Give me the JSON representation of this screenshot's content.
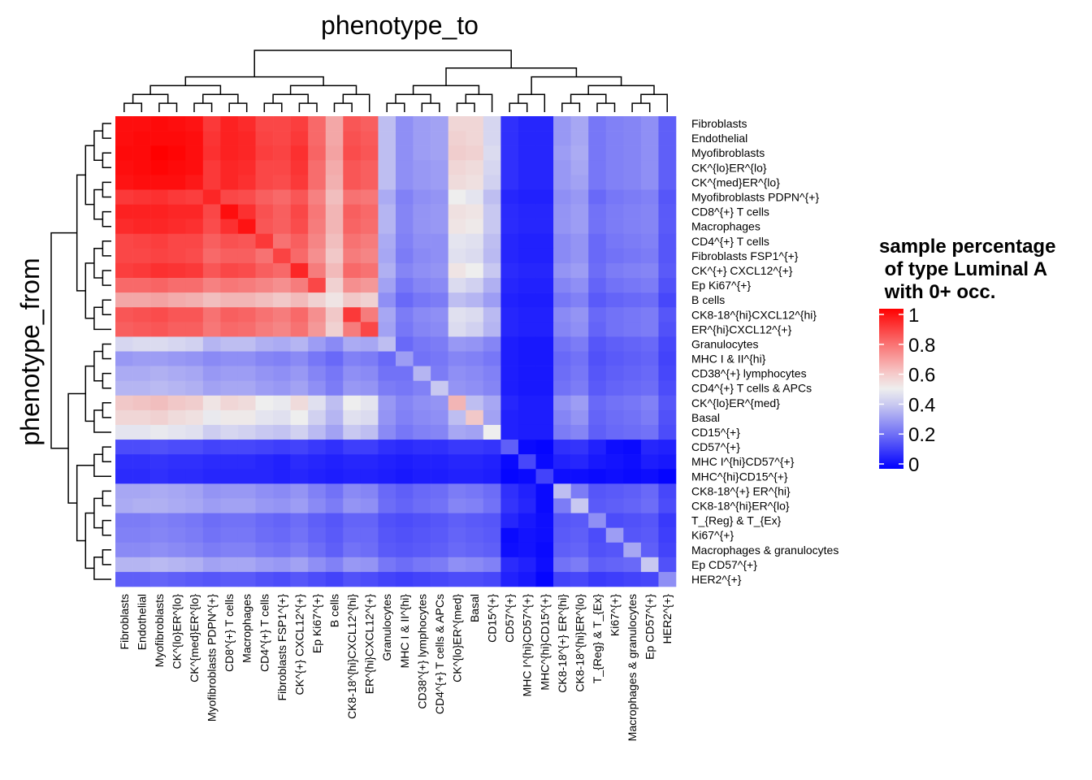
{
  "chart_data": {
    "type": "heatmap",
    "title": "",
    "xlabel": "phenotype_to",
    "ylabel": "phenotype_from",
    "colorscale": {
      "low": "#0000ff",
      "mid": "#eeeeee",
      "high": "#ff0000",
      "range": [
        0,
        1
      ]
    },
    "legend": {
      "title_lines": [
        "sample percentage",
        " of type Luminal A",
        " with 0+ occ."
      ],
      "ticks": [
        1,
        0.8,
        0.6,
        0.4,
        0.2,
        0
      ],
      "tick_labels": [
        "1",
        "0.8",
        "0.6",
        "0.4",
        "0.2",
        "0"
      ],
      "placement": "right"
    },
    "rows": [
      "Fibroblasts",
      "Endothelial",
      "Myofibroblasts",
      "CK^{lo}ER^{lo}",
      "CK^{med}ER^{lo}",
      "Myofibroblasts PDPN^{+}",
      "CD8^{+} T cells",
      "Macrophages",
      "CD4^{+} T cells",
      "Fibroblasts FSP1^{+}",
      "CK^{+} CXCL12^{+}",
      "Ep Ki67^{+}",
      "B cells",
      "CK8-18^{hi}CXCL12^{hi}",
      "ER^{hi}CXCL12^{+}",
      "Granulocytes",
      "MHC I & II^{hi}",
      "CD38^{+} lymphocytes",
      "CD4^{+} T cells & APCs",
      "CK^{lo}ER^{med}",
      "Basal",
      "CD15^{+}",
      "CD57^{+}",
      "MHC I^{hi}CD57^{+}",
      "MHC^{hi}CD15^{+}",
      "CK8-18^{+} ER^{hi}",
      "CK8-18^{hi}ER^{lo}",
      "T_{Reg} & T_{Ex}",
      "Ki67^{+}",
      "Macrophages & granulocytes",
      "Ep CD57^{+}",
      "HER2^{+}"
    ],
    "columns": [
      "Fibroblasts",
      "Endothelial",
      "Myofibroblasts",
      "CK^{lo}ER^{lo}",
      "CK^{med}ER^{lo}",
      "Myofibroblasts PDPN^{+}",
      "CD8^{+} T cells",
      "Macrophages",
      "CD4^{+} T cells",
      "Fibroblasts FSP1^{+}",
      "CK^{+} CXCL12^{+}",
      "Ep Ki67^{+}",
      "B cells",
      "CK8-18^{hi}CXCL12^{hi}",
      "ER^{hi}CXCL12^{+}",
      "Granulocytes",
      "MHC I & II^{hi}",
      "CD38^{+} lymphocytes",
      "CD4^{+} T cells & APCs",
      "CK^{lo}ER^{med}",
      "Basal",
      "CD15^{+}",
      "CD57^{+}",
      "MHC I^{hi}CD57^{+}",
      "MHC^{hi}CD15^{+}",
      "CK8-18^{+} ER^{hi}",
      "CK8-18^{hi}ER^{lo}",
      "T_{Reg} & T_{Ex}",
      "Ki67^{+}",
      "Macrophages & granulocytes",
      "Ep CD57^{+}",
      "HER2^{+}"
    ],
    "values": [
      [
        0.97,
        0.97,
        0.98,
        0.97,
        0.96,
        0.88,
        0.93,
        0.91,
        0.85,
        0.85,
        0.87,
        0.78,
        0.65,
        0.82,
        0.8,
        0.4,
        0.3,
        0.33,
        0.34,
        0.55,
        0.55,
        0.45,
        0.1,
        0.08,
        0.08,
        0.32,
        0.35,
        0.25,
        0.27,
        0.28,
        0.3,
        0.2
      ],
      [
        0.97,
        0.98,
        0.98,
        0.98,
        0.97,
        0.89,
        0.93,
        0.92,
        0.86,
        0.85,
        0.88,
        0.78,
        0.65,
        0.83,
        0.81,
        0.4,
        0.3,
        0.33,
        0.34,
        0.56,
        0.55,
        0.45,
        0.1,
        0.08,
        0.08,
        0.32,
        0.35,
        0.25,
        0.27,
        0.28,
        0.3,
        0.2
      ],
      [
        0.98,
        0.98,
        1.0,
        0.99,
        0.97,
        0.9,
        0.93,
        0.92,
        0.87,
        0.86,
        0.9,
        0.79,
        0.66,
        0.84,
        0.82,
        0.4,
        0.3,
        0.33,
        0.34,
        0.57,
        0.56,
        0.46,
        0.1,
        0.08,
        0.08,
        0.33,
        0.36,
        0.25,
        0.27,
        0.28,
        0.3,
        0.2
      ],
      [
        0.97,
        0.98,
        0.99,
        0.98,
        0.97,
        0.88,
        0.92,
        0.91,
        0.85,
        0.85,
        0.89,
        0.77,
        0.64,
        0.82,
        0.8,
        0.4,
        0.3,
        0.32,
        0.33,
        0.55,
        0.54,
        0.45,
        0.1,
        0.08,
        0.08,
        0.32,
        0.35,
        0.25,
        0.27,
        0.28,
        0.3,
        0.2
      ],
      [
        0.96,
        0.97,
        0.97,
        0.97,
        0.95,
        0.88,
        0.92,
        0.9,
        0.85,
        0.84,
        0.88,
        0.77,
        0.63,
        0.82,
        0.8,
        0.4,
        0.3,
        0.32,
        0.33,
        0.54,
        0.53,
        0.44,
        0.1,
        0.08,
        0.08,
        0.32,
        0.34,
        0.25,
        0.27,
        0.28,
        0.3,
        0.2
      ],
      [
        0.88,
        0.89,
        0.9,
        0.88,
        0.87,
        0.92,
        0.85,
        0.84,
        0.8,
        0.78,
        0.82,
        0.73,
        0.6,
        0.76,
        0.75,
        0.36,
        0.27,
        0.3,
        0.31,
        0.5,
        0.48,
        0.4,
        0.08,
        0.07,
        0.07,
        0.3,
        0.32,
        0.22,
        0.25,
        0.26,
        0.27,
        0.18
      ],
      [
        0.93,
        0.93,
        0.93,
        0.92,
        0.92,
        0.85,
        0.97,
        0.9,
        0.83,
        0.8,
        0.85,
        0.75,
        0.62,
        0.8,
        0.78,
        0.38,
        0.28,
        0.31,
        0.32,
        0.53,
        0.52,
        0.42,
        0.09,
        0.08,
        0.08,
        0.31,
        0.33,
        0.24,
        0.26,
        0.27,
        0.28,
        0.19
      ],
      [
        0.91,
        0.92,
        0.92,
        0.91,
        0.9,
        0.84,
        0.9,
        0.96,
        0.82,
        0.8,
        0.84,
        0.74,
        0.62,
        0.79,
        0.77,
        0.38,
        0.28,
        0.31,
        0.32,
        0.52,
        0.51,
        0.42,
        0.09,
        0.08,
        0.08,
        0.31,
        0.33,
        0.24,
        0.26,
        0.27,
        0.28,
        0.19
      ],
      [
        0.85,
        0.86,
        0.87,
        0.85,
        0.85,
        0.8,
        0.83,
        0.82,
        0.88,
        0.76,
        0.8,
        0.72,
        0.6,
        0.76,
        0.74,
        0.36,
        0.27,
        0.3,
        0.3,
        0.48,
        0.47,
        0.4,
        0.08,
        0.07,
        0.07,
        0.29,
        0.31,
        0.22,
        0.25,
        0.26,
        0.27,
        0.18
      ],
      [
        0.85,
        0.85,
        0.86,
        0.85,
        0.84,
        0.78,
        0.8,
        0.8,
        0.76,
        0.86,
        0.78,
        0.7,
        0.58,
        0.74,
        0.72,
        0.35,
        0.26,
        0.29,
        0.3,
        0.47,
        0.46,
        0.39,
        0.08,
        0.07,
        0.07,
        0.29,
        0.31,
        0.22,
        0.24,
        0.25,
        0.26,
        0.18
      ],
      [
        0.87,
        0.88,
        0.9,
        0.89,
        0.88,
        0.82,
        0.85,
        0.84,
        0.8,
        0.78,
        0.92,
        0.74,
        0.61,
        0.78,
        0.76,
        0.37,
        0.28,
        0.3,
        0.31,
        0.52,
        0.5,
        0.42,
        0.09,
        0.08,
        0.08,
        0.31,
        0.33,
        0.23,
        0.26,
        0.27,
        0.28,
        0.19
      ],
      [
        0.78,
        0.78,
        0.79,
        0.77,
        0.77,
        0.73,
        0.75,
        0.74,
        0.72,
        0.7,
        0.74,
        0.85,
        0.56,
        0.7,
        0.68,
        0.34,
        0.25,
        0.28,
        0.29,
        0.46,
        0.44,
        0.37,
        0.08,
        0.07,
        0.07,
        0.28,
        0.3,
        0.21,
        0.24,
        0.25,
        0.26,
        0.17
      ],
      [
        0.65,
        0.65,
        0.66,
        0.64,
        0.63,
        0.6,
        0.62,
        0.62,
        0.6,
        0.58,
        0.61,
        0.56,
        0.52,
        0.58,
        0.56,
        0.3,
        0.22,
        0.25,
        0.26,
        0.4,
        0.38,
        0.33,
        0.07,
        0.06,
        0.06,
        0.25,
        0.27,
        0.19,
        0.21,
        0.22,
        0.23,
        0.15
      ],
      [
        0.82,
        0.83,
        0.84,
        0.82,
        0.82,
        0.76,
        0.8,
        0.79,
        0.76,
        0.74,
        0.78,
        0.7,
        0.58,
        0.88,
        0.74,
        0.35,
        0.26,
        0.29,
        0.3,
        0.47,
        0.46,
        0.39,
        0.08,
        0.07,
        0.07,
        0.29,
        0.31,
        0.22,
        0.24,
        0.25,
        0.26,
        0.18
      ],
      [
        0.8,
        0.81,
        0.82,
        0.8,
        0.8,
        0.75,
        0.78,
        0.77,
        0.74,
        0.72,
        0.76,
        0.68,
        0.56,
        0.74,
        0.85,
        0.34,
        0.25,
        0.28,
        0.29,
        0.46,
        0.44,
        0.38,
        0.08,
        0.07,
        0.07,
        0.28,
        0.3,
        0.21,
        0.24,
        0.25,
        0.26,
        0.17
      ],
      [
        0.45,
        0.46,
        0.46,
        0.45,
        0.44,
        0.38,
        0.4,
        0.4,
        0.37,
        0.36,
        0.38,
        0.33,
        0.29,
        0.36,
        0.35,
        0.4,
        0.22,
        0.25,
        0.26,
        0.32,
        0.31,
        0.28,
        0.06,
        0.05,
        0.05,
        0.24,
        0.26,
        0.18,
        0.2,
        0.21,
        0.22,
        0.15
      ],
      [
        0.32,
        0.33,
        0.33,
        0.32,
        0.31,
        0.29,
        0.3,
        0.3,
        0.28,
        0.27,
        0.29,
        0.25,
        0.22,
        0.27,
        0.26,
        0.22,
        0.33,
        0.24,
        0.25,
        0.28,
        0.27,
        0.25,
        0.06,
        0.05,
        0.05,
        0.22,
        0.24,
        0.17,
        0.19,
        0.2,
        0.21,
        0.14
      ],
      [
        0.36,
        0.36,
        0.37,
        0.36,
        0.35,
        0.32,
        0.33,
        0.33,
        0.31,
        0.3,
        0.32,
        0.28,
        0.25,
        0.3,
        0.29,
        0.24,
        0.24,
        0.38,
        0.26,
        0.3,
        0.29,
        0.27,
        0.06,
        0.05,
        0.05,
        0.23,
        0.25,
        0.18,
        0.2,
        0.21,
        0.22,
        0.15
      ],
      [
        0.38,
        0.38,
        0.39,
        0.38,
        0.37,
        0.34,
        0.35,
        0.35,
        0.33,
        0.32,
        0.34,
        0.3,
        0.26,
        0.32,
        0.31,
        0.26,
        0.25,
        0.27,
        0.42,
        0.31,
        0.3,
        0.28,
        0.06,
        0.05,
        0.05,
        0.24,
        0.26,
        0.19,
        0.21,
        0.22,
        0.23,
        0.16
      ],
      [
        0.58,
        0.59,
        0.6,
        0.58,
        0.57,
        0.52,
        0.55,
        0.54,
        0.5,
        0.49,
        0.54,
        0.47,
        0.4,
        0.5,
        0.48,
        0.32,
        0.28,
        0.3,
        0.31,
        0.62,
        0.4,
        0.35,
        0.08,
        0.06,
        0.06,
        0.3,
        0.33,
        0.22,
        0.24,
        0.25,
        0.27,
        0.18
      ],
      [
        0.55,
        0.55,
        0.56,
        0.54,
        0.53,
        0.49,
        0.51,
        0.51,
        0.48,
        0.47,
        0.5,
        0.44,
        0.38,
        0.47,
        0.46,
        0.31,
        0.27,
        0.29,
        0.3,
        0.4,
        0.58,
        0.34,
        0.07,
        0.06,
        0.06,
        0.28,
        0.31,
        0.21,
        0.23,
        0.24,
        0.26,
        0.17
      ],
      [
        0.48,
        0.48,
        0.49,
        0.48,
        0.47,
        0.43,
        0.45,
        0.44,
        0.42,
        0.41,
        0.44,
        0.39,
        0.34,
        0.42,
        0.4,
        0.29,
        0.25,
        0.27,
        0.28,
        0.35,
        0.34,
        0.5,
        0.07,
        0.06,
        0.06,
        0.26,
        0.28,
        0.2,
        0.22,
        0.23,
        0.24,
        0.16
      ],
      [
        0.16,
        0.16,
        0.17,
        0.16,
        0.16,
        0.14,
        0.15,
        0.15,
        0.14,
        0.13,
        0.14,
        0.12,
        0.1,
        0.13,
        0.13,
        0.1,
        0.09,
        0.1,
        0.1,
        0.12,
        0.12,
        0.11,
        0.2,
        0.02,
        0.01,
        0.1,
        0.11,
        0.07,
        0.03,
        0.02,
        0.08,
        0.07
      ],
      [
        0.1,
        0.1,
        0.11,
        0.1,
        0.1,
        0.09,
        0.09,
        0.09,
        0.08,
        0.07,
        0.09,
        0.08,
        0.07,
        0.08,
        0.08,
        0.07,
        0.06,
        0.07,
        0.07,
        0.08,
        0.08,
        0.07,
        0.02,
        0.15,
        0.02,
        0.07,
        0.08,
        0.05,
        0.04,
        0.03,
        0.06,
        0.05
      ],
      [
        0.09,
        0.09,
        0.1,
        0.09,
        0.09,
        0.08,
        0.08,
        0.08,
        0.08,
        0.07,
        0.08,
        0.07,
        0.06,
        0.07,
        0.07,
        0.06,
        0.05,
        0.06,
        0.06,
        0.07,
        0.07,
        0.06,
        0.01,
        0.02,
        0.14,
        0.03,
        0.03,
        0.02,
        0.03,
        0.02,
        0.03,
        0.01
      ],
      [
        0.35,
        0.35,
        0.36,
        0.35,
        0.34,
        0.31,
        0.32,
        0.32,
        0.3,
        0.29,
        0.31,
        0.27,
        0.24,
        0.29,
        0.28,
        0.22,
        0.2,
        0.22,
        0.23,
        0.26,
        0.25,
        0.23,
        0.1,
        0.07,
        0.02,
        0.4,
        0.26,
        0.18,
        0.19,
        0.2,
        0.22,
        0.15
      ],
      [
        0.36,
        0.37,
        0.37,
        0.36,
        0.35,
        0.33,
        0.34,
        0.34,
        0.32,
        0.31,
        0.33,
        0.29,
        0.26,
        0.31,
        0.3,
        0.23,
        0.21,
        0.23,
        0.24,
        0.28,
        0.27,
        0.24,
        0.11,
        0.08,
        0.02,
        0.26,
        0.42,
        0.19,
        0.2,
        0.21,
        0.23,
        0.16
      ],
      [
        0.26,
        0.26,
        0.27,
        0.26,
        0.25,
        0.23,
        0.24,
        0.24,
        0.22,
        0.21,
        0.23,
        0.2,
        0.18,
        0.21,
        0.21,
        0.17,
        0.16,
        0.17,
        0.18,
        0.2,
        0.19,
        0.18,
        0.08,
        0.05,
        0.03,
        0.18,
        0.19,
        0.3,
        0.16,
        0.17,
        0.18,
        0.12
      ],
      [
        0.27,
        0.27,
        0.28,
        0.27,
        0.26,
        0.24,
        0.25,
        0.25,
        0.23,
        0.22,
        0.24,
        0.21,
        0.19,
        0.22,
        0.22,
        0.18,
        0.17,
        0.18,
        0.19,
        0.21,
        0.2,
        0.19,
        0.02,
        0.04,
        0.03,
        0.19,
        0.2,
        0.16,
        0.33,
        0.18,
        0.19,
        0.13
      ],
      [
        0.29,
        0.29,
        0.3,
        0.29,
        0.28,
        0.26,
        0.27,
        0.27,
        0.25,
        0.24,
        0.26,
        0.23,
        0.2,
        0.24,
        0.23,
        0.19,
        0.18,
        0.19,
        0.2,
        0.22,
        0.21,
        0.2,
        0.03,
        0.04,
        0.02,
        0.2,
        0.21,
        0.17,
        0.18,
        0.35,
        0.2,
        0.14
      ],
      [
        0.38,
        0.38,
        0.39,
        0.38,
        0.37,
        0.34,
        0.35,
        0.35,
        0.33,
        0.32,
        0.34,
        0.3,
        0.27,
        0.32,
        0.31,
        0.25,
        0.23,
        0.25,
        0.26,
        0.3,
        0.29,
        0.27,
        0.09,
        0.07,
        0.03,
        0.24,
        0.26,
        0.2,
        0.21,
        0.22,
        0.42,
        0.17
      ],
      [
        0.2,
        0.2,
        0.21,
        0.2,
        0.19,
        0.18,
        0.19,
        0.19,
        0.17,
        0.16,
        0.18,
        0.16,
        0.14,
        0.17,
        0.16,
        0.14,
        0.13,
        0.14,
        0.15,
        0.16,
        0.16,
        0.15,
        0.07,
        0.05,
        0.01,
        0.14,
        0.15,
        0.12,
        0.13,
        0.14,
        0.15,
        0.3
      ]
    ]
  }
}
